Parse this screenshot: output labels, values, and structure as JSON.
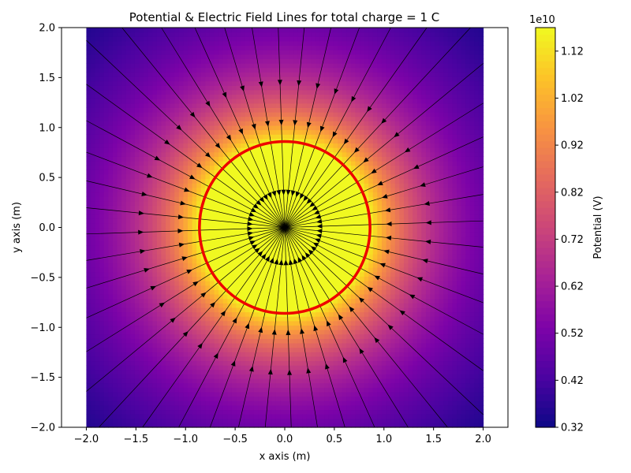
{
  "chart_data": {
    "type": "heatmap",
    "title": "Potential & Electric Field Lines for total charge = 1 C",
    "xlabel": "x axis (m)",
    "ylabel": "y axis (m)",
    "xlim": [
      -2.25,
      2.25
    ],
    "ylim": [
      -2.0,
      2.0
    ],
    "xticks": [
      "−2.0",
      "−1.5",
      "−1.0",
      "−0.5",
      "0.0",
      "0.5",
      "1.0",
      "1.5",
      "2.0"
    ],
    "xtick_values": [
      -2.0,
      -1.5,
      -1.0,
      -0.5,
      0.0,
      0.5,
      1.0,
      1.5,
      2.0
    ],
    "yticks": [
      "−2.0",
      "−1.5",
      "−1.0",
      "−0.5",
      "0.0",
      "0.5",
      "1.0",
      "1.5",
      "2.0"
    ],
    "ytick_values": [
      -2.0,
      -1.5,
      -1.0,
      -0.5,
      0.0,
      0.5,
      1.0,
      1.5,
      2.0
    ],
    "field_extent": {
      "x": [
        -2.0,
        2.0
      ],
      "y": [
        -2.0,
        2.0
      ]
    },
    "sphere": {
      "center": [
        0.0,
        0.0
      ],
      "radius": 0.86,
      "color": "#ee0000"
    },
    "potential": {
      "min": 3200000000.0,
      "max": 11700000000.0,
      "inside_value": 11700000000.0
    },
    "colormap": "plasma",
    "field_direction": "inward",
    "colorbar": {
      "label": "Potential (V)",
      "offset_text": "1e10",
      "ticks": [
        "0.32",
        "0.42",
        "0.52",
        "0.62",
        "0.72",
        "0.82",
        "0.92",
        "1.02",
        "1.12"
      ],
      "tick_values": [
        0.32,
        0.42,
        0.52,
        0.62,
        0.72,
        0.82,
        0.92,
        1.02,
        1.12
      ],
      "range": [
        0.32,
        1.17
      ]
    },
    "grid": false
  }
}
